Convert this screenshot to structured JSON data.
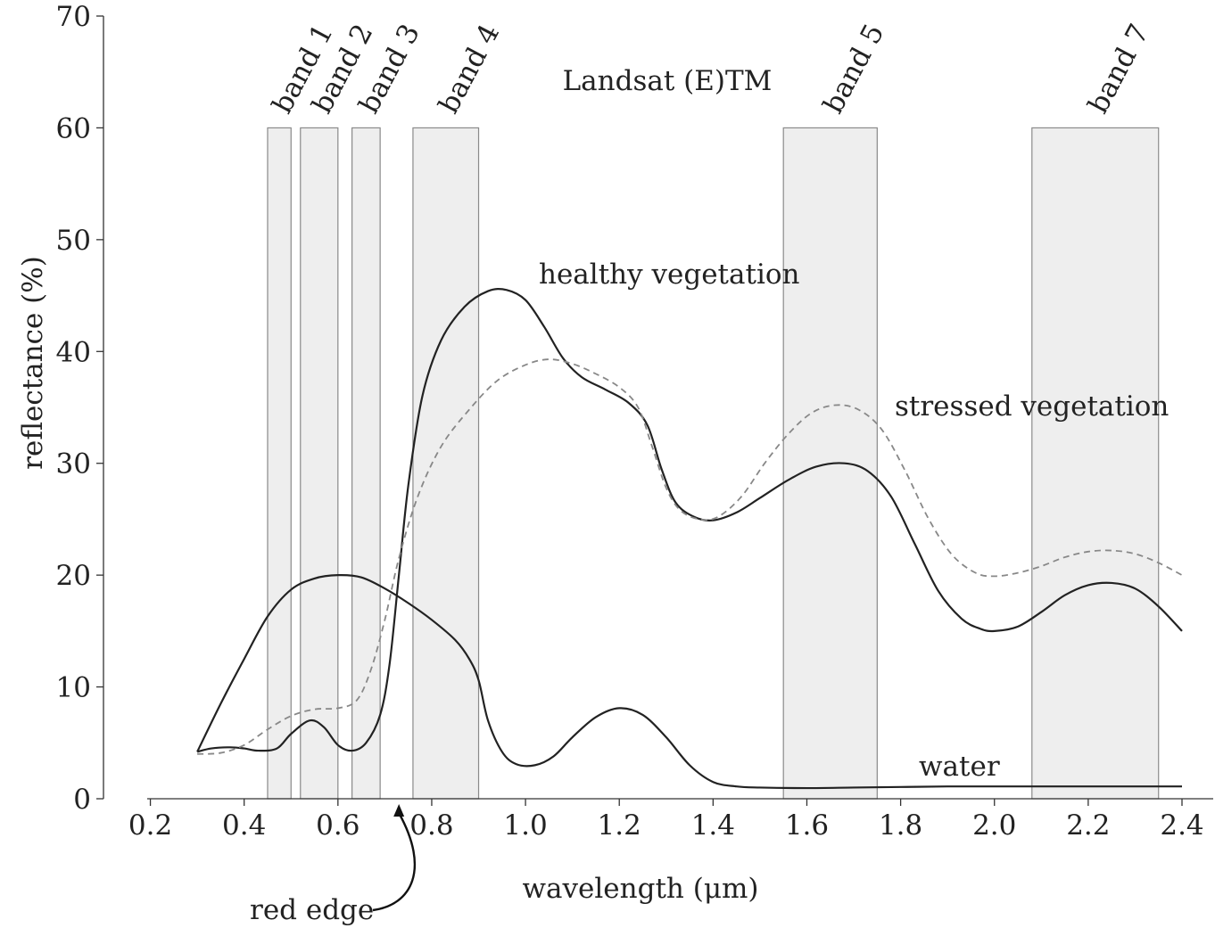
{
  "chart_data": {
    "type": "line",
    "title": "Landsat (E)TM",
    "xlabel": "wavelength (μm)",
    "ylabel": "reflectance (%)",
    "xlim": [
      0.1,
      2.4
    ],
    "ylim": [
      0,
      70
    ],
    "x_ticks": [
      0.2,
      0.4,
      0.6,
      0.8,
      1.0,
      1.2,
      1.4,
      1.6,
      1.8,
      2.0,
      2.2,
      2.4
    ],
    "x_tick_labels": [
      "0.2",
      "0.4",
      "0.6",
      "0.8",
      "1.0",
      "1.2",
      "1.4",
      "1.6",
      "1.8",
      "2.0",
      "2.2",
      "2.4"
    ],
    "y_ticks": [
      0,
      10,
      20,
      30,
      40,
      50,
      60,
      70
    ],
    "y_tick_labels": [
      "0",
      "10",
      "20",
      "30",
      "40",
      "50",
      "60",
      "70"
    ],
    "grid": false,
    "bands": [
      {
        "label": "band 1",
        "range": [
          0.45,
          0.5
        ],
        "top": 60
      },
      {
        "label": "band 2",
        "range": [
          0.52,
          0.6
        ],
        "top": 60
      },
      {
        "label": "band 3",
        "range": [
          0.63,
          0.69
        ],
        "top": 60
      },
      {
        "label": "band 4",
        "range": [
          0.76,
          0.9
        ],
        "top": 60
      },
      {
        "label": "band 5",
        "range": [
          1.55,
          1.75
        ],
        "top": 60
      },
      {
        "label": "band 7",
        "range": [
          2.08,
          2.35
        ],
        "top": 60
      }
    ],
    "series": [
      {
        "name": "healthy vegetation",
        "style": "solid",
        "color": "#222222",
        "points": [
          [
            0.3,
            4.2
          ],
          [
            0.33,
            4.5
          ],
          [
            0.37,
            4.6
          ],
          [
            0.4,
            4.5
          ],
          [
            0.43,
            4.3
          ],
          [
            0.47,
            4.5
          ],
          [
            0.5,
            5.8
          ],
          [
            0.54,
            7.0
          ],
          [
            0.57,
            6.4
          ],
          [
            0.6,
            4.8
          ],
          [
            0.63,
            4.3
          ],
          [
            0.66,
            5.0
          ],
          [
            0.69,
            7.5
          ],
          [
            0.71,
            12
          ],
          [
            0.73,
            20
          ],
          [
            0.75,
            28
          ],
          [
            0.78,
            36
          ],
          [
            0.82,
            41
          ],
          [
            0.87,
            44
          ],
          [
            0.92,
            45.4
          ],
          [
            0.96,
            45.5
          ],
          [
            1.0,
            44.6
          ],
          [
            1.04,
            42.2
          ],
          [
            1.08,
            39.4
          ],
          [
            1.12,
            37.7
          ],
          [
            1.17,
            36.6
          ],
          [
            1.22,
            35.4
          ],
          [
            1.26,
            33.4
          ],
          [
            1.29,
            29.5
          ],
          [
            1.32,
            26.5
          ],
          [
            1.36,
            25.2
          ],
          [
            1.4,
            24.9
          ],
          [
            1.45,
            25.6
          ],
          [
            1.5,
            26.9
          ],
          [
            1.56,
            28.5
          ],
          [
            1.62,
            29.7
          ],
          [
            1.68,
            30.0
          ],
          [
            1.73,
            29.3
          ],
          [
            1.78,
            27.0
          ],
          [
            1.83,
            22.8
          ],
          [
            1.88,
            18.6
          ],
          [
            1.93,
            16.1
          ],
          [
            1.97,
            15.2
          ],
          [
            2.0,
            15.0
          ],
          [
            2.05,
            15.4
          ],
          [
            2.1,
            16.7
          ],
          [
            2.15,
            18.2
          ],
          [
            2.2,
            19.1
          ],
          [
            2.25,
            19.3
          ],
          [
            2.3,
            18.8
          ],
          [
            2.35,
            17.2
          ],
          [
            2.4,
            15.0
          ]
        ]
      },
      {
        "name": "stressed vegetation",
        "style": "dashed",
        "color": "#888888",
        "points": [
          [
            0.3,
            4.0
          ],
          [
            0.35,
            4.1
          ],
          [
            0.4,
            4.8
          ],
          [
            0.45,
            6.2
          ],
          [
            0.5,
            7.4
          ],
          [
            0.55,
            8.0
          ],
          [
            0.6,
            8.1
          ],
          [
            0.64,
            8.8
          ],
          [
            0.67,
            11.5
          ],
          [
            0.7,
            16
          ],
          [
            0.73,
            21.5
          ],
          [
            0.77,
            27
          ],
          [
            0.82,
            31.5
          ],
          [
            0.88,
            34.8
          ],
          [
            0.94,
            37.4
          ],
          [
            1.0,
            38.8
          ],
          [
            1.05,
            39.3
          ],
          [
            1.1,
            38.9
          ],
          [
            1.15,
            38.0
          ],
          [
            1.2,
            36.8
          ],
          [
            1.24,
            35.0
          ],
          [
            1.27,
            31.5
          ],
          [
            1.3,
            27.8
          ],
          [
            1.33,
            25.8
          ],
          [
            1.37,
            25.0
          ],
          [
            1.41,
            25.2
          ],
          [
            1.46,
            27.0
          ],
          [
            1.51,
            30.0
          ],
          [
            1.56,
            32.6
          ],
          [
            1.61,
            34.5
          ],
          [
            1.66,
            35.2
          ],
          [
            1.71,
            34.8
          ],
          [
            1.76,
            33.0
          ],
          [
            1.81,
            29.3
          ],
          [
            1.86,
            25.0
          ],
          [
            1.91,
            21.8
          ],
          [
            1.96,
            20.2
          ],
          [
            2.0,
            19.9
          ],
          [
            2.05,
            20.2
          ],
          [
            2.1,
            20.8
          ],
          [
            2.15,
            21.6
          ],
          [
            2.2,
            22.1
          ],
          [
            2.25,
            22.2
          ],
          [
            2.3,
            21.9
          ],
          [
            2.35,
            21.1
          ],
          [
            2.4,
            20.0
          ]
        ]
      },
      {
        "name": "water",
        "style": "solid",
        "color": "#222222",
        "points": [
          [
            0.3,
            4.2
          ],
          [
            0.35,
            8.5
          ],
          [
            0.4,
            12.5
          ],
          [
            0.45,
            16.3
          ],
          [
            0.5,
            18.7
          ],
          [
            0.55,
            19.7
          ],
          [
            0.6,
            20.0
          ],
          [
            0.65,
            19.8
          ],
          [
            0.7,
            18.8
          ],
          [
            0.75,
            17.5
          ],
          [
            0.8,
            16.0
          ],
          [
            0.85,
            14.2
          ],
          [
            0.88,
            12.5
          ],
          [
            0.9,
            10.6
          ],
          [
            0.92,
            7.0
          ],
          [
            0.95,
            4.2
          ],
          [
            0.98,
            3.1
          ],
          [
            1.02,
            3.0
          ],
          [
            1.06,
            3.8
          ],
          [
            1.1,
            5.5
          ],
          [
            1.15,
            7.3
          ],
          [
            1.2,
            8.1
          ],
          [
            1.25,
            7.5
          ],
          [
            1.3,
            5.5
          ],
          [
            1.35,
            3.0
          ],
          [
            1.4,
            1.5
          ],
          [
            1.45,
            1.1
          ],
          [
            1.5,
            1.0
          ],
          [
            1.6,
            0.95
          ],
          [
            1.7,
            1.0
          ],
          [
            1.8,
            1.05
          ],
          [
            1.9,
            1.1
          ],
          [
            2.0,
            1.1
          ],
          [
            2.1,
            1.1
          ],
          [
            2.2,
            1.1
          ],
          [
            2.3,
            1.1
          ],
          [
            2.4,
            1.1
          ]
        ]
      }
    ],
    "annotations": [
      {
        "text": "healthy vegetation",
        "x": 0.97,
        "y": 46
      },
      {
        "text": "stressed vegetation",
        "x": 1.76,
        "y": 34
      },
      {
        "text": "water",
        "x": 1.81,
        "y": 2
      },
      {
        "text": "red edge",
        "arrow_to_x": 0.73,
        "arrow_to_y": 0
      }
    ]
  }
}
